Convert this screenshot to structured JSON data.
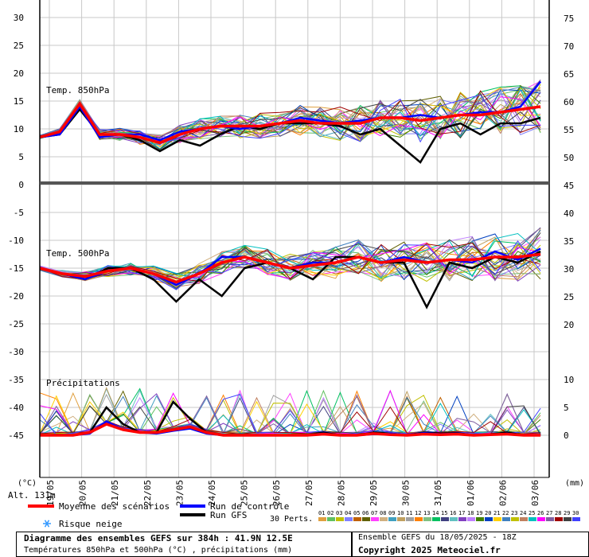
{
  "chart_data": {
    "type": "line",
    "title": "Diagramme des ensembles GEFS sur 384h : 41.9N 12.5E",
    "subtitle": "Températures 850hPa et 500hPa (°C) , précipitations (mm)",
    "run_info": "Ensemble GEFS du 18/05/2025 - 18Z",
    "copyright": "Copyright 2025 Meteociel.fr",
    "altitude_label": "Alt. 131m",
    "left_unit": "(°C)",
    "right_unit": "(mm)",
    "panel_labels": {
      "t850": "Temp. 850hPa",
      "t500": "Temp. 500hPa",
      "precip": "Précipitations"
    },
    "x_dates": [
      "19/05",
      "20/05",
      "21/05",
      "22/05",
      "23/05",
      "24/05",
      "25/05",
      "26/05",
      "27/05",
      "28/05",
      "29/05",
      "30/05",
      "31/05",
      "01/06",
      "02/06",
      "03/06"
    ],
    "x_range_days": [
      0,
      16
    ],
    "left_axis": {
      "range": [
        -45,
        30
      ],
      "ticks": [
        30,
        25,
        20,
        15,
        10,
        5,
        0,
        -5,
        -10,
        -15,
        -20,
        -25,
        -30,
        -35,
        -40,
        -45
      ]
    },
    "right_axis_t850": {
      "range": [
        45,
        75
      ],
      "ticks": [
        75,
        70,
        65,
        60,
        55,
        50,
        45
      ]
    },
    "right_axis_t500": {
      "range": [
        20,
        40
      ],
      "ticks": [
        40,
        35,
        30,
        25,
        20
      ]
    },
    "right_axis_precip": {
      "range": [
        0,
        10
      ],
      "ticks": [
        10,
        5,
        0
      ]
    },
    "series": [
      {
        "name": "Moyenne des scénarios",
        "color": "#ff0000",
        "t850": [
          8.5,
          9.5,
          14.5,
          9,
          9,
          8.5,
          7.5,
          9,
          10,
          10.5,
          10.5,
          10.5,
          11,
          11.5,
          11,
          11,
          11,
          12,
          12,
          11.5,
          12,
          12.5,
          12.5,
          13,
          13.5,
          14
        ],
        "t500": [
          -15,
          -16,
          -16.5,
          -15.5,
          -15,
          -16,
          -17.5,
          -16,
          -14,
          -13,
          -14,
          -15,
          -14.5,
          -14,
          -13,
          -14,
          -13.5,
          -14,
          -13.5,
          -13.5,
          -13,
          -13,
          -12.5
        ],
        "precip": [
          0,
          0,
          0,
          0.5,
          2,
          1,
          0.5,
          0.5,
          1,
          1.5,
          0.5,
          0,
          0,
          0,
          0,
          0,
          0,
          0.2,
          0,
          0,
          0.3,
          0.1,
          0,
          0.2,
          0.1,
          0.2,
          0,
          0.1,
          0.2,
          0,
          0
        ]
      },
      {
        "name": "Run de contrôle",
        "color": "#0000ff",
        "t850": [
          8.5,
          9,
          14,
          8.5,
          9,
          9,
          8,
          9.5,
          10,
          10.5,
          10,
          10.5,
          11,
          12,
          11.5,
          11,
          11.5,
          12,
          12,
          12.5,
          12,
          12.5,
          13,
          13,
          14,
          18.5
        ],
        "t500": [
          -15,
          -16,
          -17,
          -15.5,
          -15,
          -16,
          -18,
          -16,
          -13,
          -13,
          -14,
          -15,
          -14,
          -14,
          -13,
          -14,
          -13,
          -14,
          -13.5,
          -14,
          -12,
          -13.5,
          -11.5
        ],
        "precip": [
          0,
          0,
          0,
          0.3,
          2.5,
          1,
          0.5,
          0.3,
          0.8,
          1.2,
          0.3,
          0,
          0,
          0,
          0,
          0,
          0,
          0.3,
          0,
          0,
          0.2,
          0.3,
          0,
          0.4,
          0.2,
          0.3,
          0,
          0.1,
          0.3,
          0,
          0
        ]
      },
      {
        "name": "Run GFS",
        "color": "#000000",
        "t850": [
          8.5,
          9,
          13.5,
          9,
          9,
          8,
          6,
          8,
          7,
          9,
          10.5,
          10,
          11,
          11,
          11,
          10.5,
          9,
          10,
          7,
          4,
          10,
          11,
          9,
          11,
          11,
          12
        ],
        "t500": [
          -15,
          -16,
          -17,
          -15,
          -15,
          -17,
          -21,
          -17,
          -20,
          -15,
          -14,
          -15,
          -17,
          -13,
          -13,
          -14,
          -14,
          -22,
          -14,
          -15,
          -13,
          -14,
          -12
        ],
        "precip": [
          0,
          0,
          0,
          0.5,
          5,
          2,
          0.5,
          0.5,
          6,
          3,
          0.5,
          0,
          0,
          0,
          0,
          0,
          0,
          0.5,
          0,
          0,
          0.5,
          0.3,
          0,
          0.5,
          0.3,
          0.4,
          0,
          0.2,
          0.5,
          0,
          0
        ]
      }
    ],
    "perturbations": {
      "label": "30 Perts.",
      "names": [
        "01",
        "02",
        "03",
        "04",
        "05",
        "06",
        "07",
        "08",
        "09",
        "10",
        "11",
        "12",
        "13",
        "14",
        "15",
        "16",
        "17",
        "18",
        "19",
        "20",
        "21",
        "22",
        "23",
        "24",
        "25",
        "26",
        "27",
        "28",
        "29",
        "30"
      ],
      "colors": [
        "#e0a040",
        "#60c060",
        "#c0c000",
        "#8080ff",
        "#c06000",
        "#606000",
        "#ff40ff",
        "#d0b080",
        "#40a0c0",
        "#c0a060",
        "#a0a0a0",
        "#ff8000",
        "#80c080",
        "#00c060",
        "#404080",
        "#60c0c0",
        "#8040c0",
        "#c080ff",
        "#408000",
        "#0040c0",
        "#ffd000",
        "#4080c0",
        "#c0c000",
        "#c08060",
        "#00c0c0",
        "#ff00ff",
        "#8060a0",
        "#a00000",
        "#404040",
        "#4040ff"
      ]
    },
    "legend_snow": "Risque neige"
  }
}
